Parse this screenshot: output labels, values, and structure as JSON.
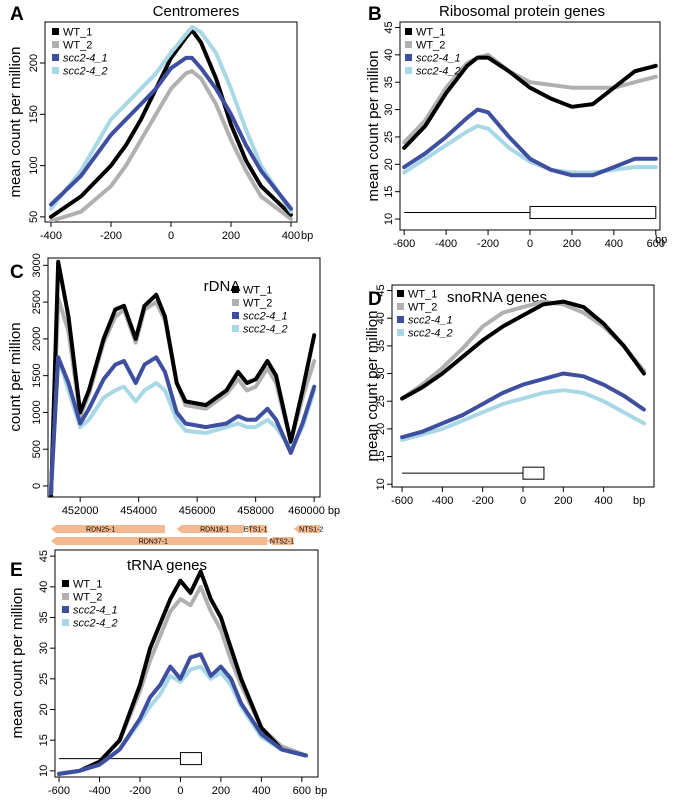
{
  "colors": {
    "WT_1": "#000000",
    "WT_2": "#b0b0b0",
    "scc2-4_1": "#3e4fa0",
    "scc2-4_2": "#a8d8e6",
    "gene": "#f4b98e"
  },
  "chart_data": [
    {
      "letter": "A",
      "type": "line",
      "title": "Centromeres",
      "ylabel": "mean count per million",
      "xunit": "bp",
      "xlim": [
        -420,
        420
      ],
      "ylim": [
        45,
        240
      ],
      "xticks": [
        -400,
        -200,
        0,
        200,
        400
      ],
      "yticks": [
        50,
        100,
        150,
        200
      ],
      "legend_position": "top-left",
      "series": [
        {
          "name": "WT_1",
          "x": [
            -400,
            -300,
            -200,
            -150,
            -100,
            -50,
            0,
            50,
            70,
            100,
            150,
            200,
            250,
            300,
            400
          ],
          "y": [
            50,
            70,
            100,
            120,
            145,
            175,
            205,
            225,
            232,
            220,
            185,
            140,
            105,
            80,
            52
          ]
        },
        {
          "name": "WT_2",
          "x": [
            -400,
            -300,
            -200,
            -150,
            -100,
            -50,
            0,
            50,
            70,
            100,
            150,
            200,
            250,
            300,
            400
          ],
          "y": [
            46,
            55,
            80,
            100,
            125,
            150,
            175,
            190,
            192,
            185,
            160,
            125,
            95,
            70,
            48
          ]
        },
        {
          "name": "scc2-4_1",
          "x": [
            -400,
            -300,
            -200,
            -150,
            -100,
            -50,
            0,
            50,
            70,
            100,
            150,
            200,
            250,
            300,
            400
          ],
          "y": [
            62,
            90,
            130,
            145,
            160,
            175,
            195,
            205,
            205,
            195,
            175,
            150,
            120,
            95,
            58
          ]
        },
        {
          "name": "scc2-4_2",
          "x": [
            -400,
            -300,
            -200,
            -150,
            -100,
            -50,
            0,
            50,
            70,
            100,
            150,
            200,
            250,
            300,
            400
          ],
          "y": [
            58,
            95,
            145,
            160,
            175,
            190,
            210,
            228,
            235,
            230,
            210,
            175,
            135,
            100,
            55
          ]
        }
      ]
    },
    {
      "letter": "B",
      "type": "line",
      "title": "Ribosomal protein genes",
      "ylabel": "mean count per million",
      "xunit": "bp",
      "xlim": [
        -620,
        620
      ],
      "ylim": [
        8,
        46
      ],
      "xticks": [
        -600,
        -400,
        -200,
        0,
        200,
        400,
        600
      ],
      "yticks": [
        10,
        15,
        20,
        25,
        30,
        35,
        40,
        45
      ],
      "legend_position": "top-left",
      "gene_model": {
        "tss": 0,
        "y": 11.2
      },
      "series": [
        {
          "name": "WT_1",
          "x": [
            -600,
            -500,
            -400,
            -300,
            -250,
            -200,
            -100,
            0,
            100,
            200,
            300,
            400,
            500,
            600
          ],
          "y": [
            23,
            27,
            33,
            38,
            39.5,
            39.5,
            37,
            34,
            32,
            30.5,
            31,
            34,
            37,
            38
          ]
        },
        {
          "name": "WT_2",
          "x": [
            -600,
            -500,
            -400,
            -300,
            -250,
            -200,
            -100,
            0,
            100,
            200,
            300,
            400,
            500,
            600
          ],
          "y": [
            24,
            28,
            34,
            38.5,
            39.5,
            40,
            37,
            35,
            34.5,
            34,
            34,
            34,
            35,
            36
          ]
        },
        {
          "name": "scc2-4_1",
          "x": [
            -600,
            -500,
            -400,
            -300,
            -250,
            -200,
            -100,
            0,
            100,
            200,
            300,
            400,
            500,
            600
          ],
          "y": [
            19.5,
            22,
            25,
            28.5,
            30,
            29.5,
            25,
            21,
            19,
            18,
            18,
            19.5,
            21,
            21
          ]
        },
        {
          "name": "scc2-4_2",
          "x": [
            -600,
            -500,
            -400,
            -300,
            -250,
            -200,
            -100,
            0,
            100,
            200,
            300,
            400,
            500,
            600
          ],
          "y": [
            18.5,
            21,
            23.5,
            26,
            27,
            26.5,
            23,
            20.5,
            19,
            18.5,
            18.5,
            19,
            19.5,
            19.5
          ]
        }
      ]
    },
    {
      "letter": "C",
      "type": "line",
      "title": "rDNA",
      "ylabel": "count per million",
      "xunit": "bp",
      "xlim": [
        450900,
        460200
      ],
      "ylim": [
        -150,
        3100
      ],
      "xticks": [
        452000,
        454000,
        456000,
        458000,
        460000
      ],
      "xtick_labels": [
        "452000",
        "454000",
        "456000",
        "458000",
        "460000 bp"
      ],
      "yticks": [
        0,
        500,
        1000,
        1500,
        2000,
        2500,
        3000
      ],
      "legend_position": "top-right",
      "series": [
        {
          "name": "WT_1",
          "x": [
            451000,
            451250,
            451600,
            452000,
            452300,
            452800,
            453200,
            453500,
            453900,
            454200,
            454600,
            454900,
            455300,
            455600,
            456300,
            457000,
            457400,
            457700,
            458000,
            458400,
            458700,
            459200,
            459600,
            460000
          ],
          "y": [
            -200,
            3050,
            2300,
            1000,
            1300,
            2000,
            2400,
            2450,
            2000,
            2450,
            2600,
            2300,
            1400,
            1150,
            1100,
            1300,
            1550,
            1400,
            1450,
            1700,
            1500,
            600,
            1300,
            2050
          ]
        },
        {
          "name": "WT_2",
          "x": [
            451000,
            451250,
            451600,
            452000,
            452300,
            452800,
            453200,
            453500,
            453900,
            454200,
            454600,
            454900,
            455300,
            455600,
            456300,
            457000,
            457400,
            457700,
            458000,
            458400,
            458700,
            459200,
            459600,
            460000
          ],
          "y": [
            -150,
            2550,
            2100,
            950,
            1250,
            1950,
            2300,
            2400,
            1950,
            2400,
            2500,
            2250,
            1400,
            1100,
            1050,
            1250,
            1450,
            1300,
            1350,
            1600,
            1400,
            600,
            1200,
            1700
          ]
        },
        {
          "name": "scc2-4_1",
          "x": [
            451000,
            451250,
            451600,
            452000,
            452300,
            452800,
            453200,
            453500,
            453900,
            454200,
            454600,
            454900,
            455300,
            455600,
            456300,
            457000,
            457400,
            457700,
            458000,
            458400,
            458700,
            459200,
            459600,
            460000
          ],
          "y": [
            -100,
            1750,
            1400,
            850,
            1050,
            1450,
            1650,
            1700,
            1400,
            1650,
            1750,
            1550,
            1000,
            850,
            800,
            850,
            950,
            900,
            900,
            1050,
            900,
            450,
            850,
            1350
          ]
        },
        {
          "name": "scc2-4_2",
          "x": [
            451000,
            451250,
            451600,
            452000,
            452300,
            452800,
            453200,
            453500,
            453900,
            454200,
            454600,
            454900,
            455300,
            455600,
            456300,
            457000,
            457400,
            457700,
            458000,
            458400,
            458700,
            459200,
            459600,
            460000
          ],
          "y": [
            -100,
            1750,
            1300,
            800,
            900,
            1200,
            1300,
            1350,
            1150,
            1300,
            1400,
            1300,
            900,
            750,
            720,
            800,
            850,
            800,
            800,
            900,
            800,
            500,
            800,
            1300
          ]
        }
      ],
      "gene_track": [
        {
          "name": "RDN25-1",
          "start": 451000,
          "end": 454900,
          "row": 0,
          "label_x": 452700
        },
        {
          "name": "RDN18-1",
          "start": 455300,
          "end": 457600,
          "row": 0,
          "label_x": 456600
        },
        {
          "name": "ETS1-1",
          "start": 457650,
          "end": 458400,
          "row": 0,
          "label_x": 458000
        },
        {
          "name": "NTS1-2",
          "start": 459300,
          "end": 460200,
          "row": 0,
          "label_x": 459900
        },
        {
          "name": "RDN37-1",
          "start": 451000,
          "end": 458400,
          "row": 1,
          "label_x": 454500
        },
        {
          "name": "NTS2-1",
          "start": 458400,
          "end": 459300,
          "row": 1,
          "label_x": 458900
        }
      ]
    },
    {
      "letter": "D",
      "type": "line",
      "title": "snoRNA genes",
      "ylabel": "mean count per million",
      "xunit": "bp",
      "xlim": [
        -650,
        650
      ],
      "ylim": [
        9.5,
        46
      ],
      "xticks": [
        -600,
        -400,
        -200,
        0,
        200,
        400
      ],
      "yticks": [
        10,
        15,
        20,
        25,
        30,
        35,
        40,
        45
      ],
      "legend_position": "top-left",
      "gene_model": {
        "tss": 0,
        "y": 12
      },
      "series": [
        {
          "name": "WT_1",
          "x": [
            -600,
            -500,
            -400,
            -300,
            -200,
            -100,
            0,
            100,
            200,
            300,
            400,
            500,
            600
          ],
          "y": [
            25.5,
            27.5,
            30,
            33,
            36,
            38.5,
            40.5,
            42.5,
            43,
            42,
            39,
            35,
            30
          ]
        },
        {
          "name": "WT_2",
          "x": [
            -600,
            -500,
            -400,
            -300,
            -200,
            -100,
            0,
            100,
            200,
            300,
            400,
            500,
            600
          ],
          "y": [
            25.5,
            28,
            31,
            34.5,
            38.5,
            41,
            42,
            43,
            42.5,
            41,
            38.5,
            35,
            30.5
          ]
        },
        {
          "name": "scc2-4_1",
          "x": [
            -600,
            -500,
            -400,
            -300,
            -200,
            -100,
            0,
            100,
            200,
            300,
            400,
            500,
            600
          ],
          "y": [
            18.5,
            19.5,
            21,
            22.5,
            24.5,
            26.5,
            28,
            29,
            30,
            29.5,
            28,
            26,
            23.5
          ]
        },
        {
          "name": "scc2-4_2",
          "x": [
            -600,
            -500,
            -400,
            -300,
            -200,
            -100,
            0,
            100,
            200,
            300,
            400,
            500,
            600
          ],
          "y": [
            18,
            19,
            20,
            21.5,
            23,
            24.5,
            25.5,
            26.5,
            27,
            26.5,
            25,
            23,
            21
          ]
        }
      ]
    },
    {
      "letter": "E",
      "type": "line",
      "title": "tRNA genes",
      "ylabel": "mean count per million",
      "xunit": "bp",
      "xlim": [
        -620,
        680
      ],
      "ylim": [
        9,
        46
      ],
      "xticks": [
        -600,
        -400,
        -200,
        0,
        200,
        400,
        600
      ],
      "yticks": [
        10,
        15,
        20,
        25,
        30,
        35,
        40,
        45
      ],
      "legend_position": "top-left",
      "gene_model": {
        "tss": 0,
        "y": 12
      },
      "series": [
        {
          "name": "WT_1",
          "x": [
            -600,
            -500,
            -400,
            -300,
            -200,
            -150,
            -100,
            -50,
            0,
            50,
            100,
            150,
            200,
            250,
            300,
            400,
            500,
            620
          ],
          "y": [
            9.5,
            10,
            11.5,
            15,
            24,
            30,
            34,
            38,
            41,
            39,
            42.5,
            38,
            35,
            30,
            25,
            17,
            13.5,
            12.5
          ]
        },
        {
          "name": "WT_2",
          "x": [
            -600,
            -500,
            -400,
            -300,
            -200,
            -150,
            -100,
            -50,
            0,
            50,
            100,
            150,
            200,
            250,
            300,
            400,
            500,
            620
          ],
          "y": [
            9.5,
            10,
            11.5,
            15,
            23,
            28,
            32,
            36,
            38,
            37,
            40,
            36,
            33,
            28,
            24,
            17,
            14,
            12.5
          ]
        },
        {
          "name": "scc2-4_1",
          "x": [
            -600,
            -500,
            -400,
            -300,
            -200,
            -150,
            -100,
            -50,
            0,
            50,
            100,
            150,
            200,
            250,
            300,
            400,
            500,
            620
          ],
          "y": [
            9.5,
            10,
            11,
            13.5,
            18.5,
            22,
            24,
            27,
            25,
            28.5,
            29,
            25.5,
            27,
            25,
            21,
            16,
            13.5,
            12.5
          ]
        },
        {
          "name": "scc2-4_2",
          "x": [
            -600,
            -500,
            -400,
            -300,
            -200,
            -150,
            -100,
            -50,
            0,
            50,
            100,
            150,
            200,
            250,
            300,
            400,
            500,
            620
          ],
          "y": [
            9.5,
            10,
            11,
            13.5,
            18,
            20.5,
            22.5,
            25.5,
            24.5,
            26.5,
            27,
            25,
            26,
            24,
            20.5,
            15.5,
            13.5,
            12.5
          ]
        }
      ]
    }
  ]
}
